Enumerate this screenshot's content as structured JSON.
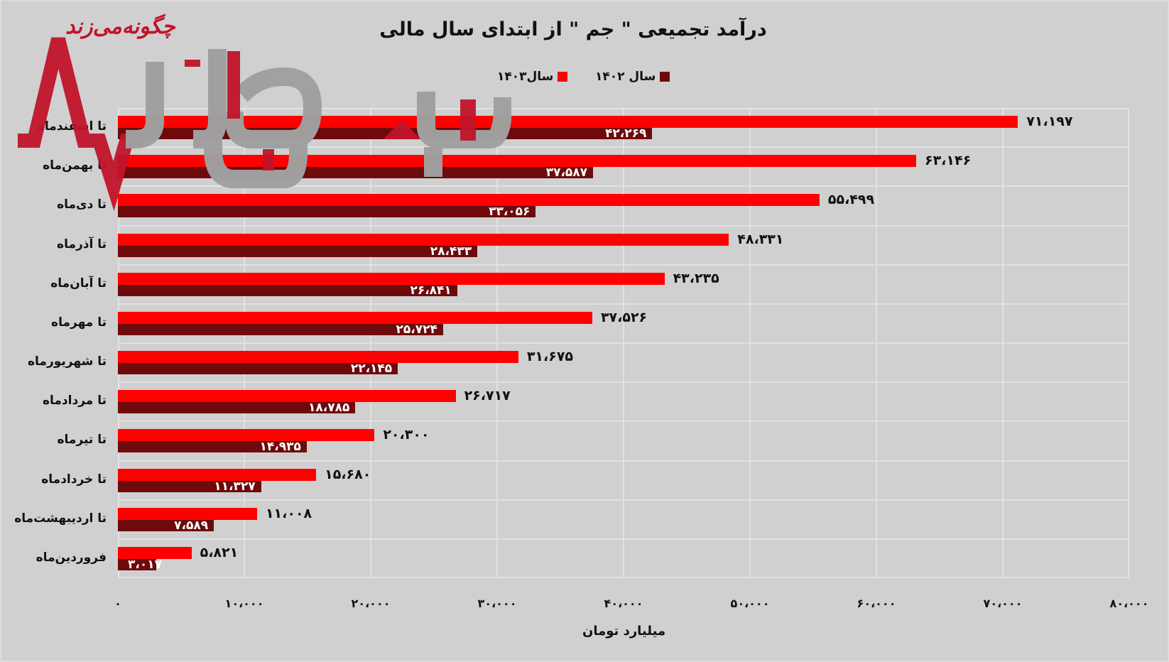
{
  "chart_data": {
    "type": "bar",
    "orientation": "horizontal",
    "title": "درآمد تجمیعی \" جم \"  از ابتدای سال مالی",
    "xlabel": "میلیارد تومان",
    "ylabel": "",
    "xlim": [
      0,
      80000
    ],
    "x_ticks": [
      0,
      10000,
      20000,
      30000,
      40000,
      50000,
      60000,
      70000,
      80000
    ],
    "x_tick_labels": [
      "۰",
      "۱۰،۰۰۰",
      "۲۰،۰۰۰",
      "۳۰،۰۰۰",
      "۴۰،۰۰۰",
      "۵۰،۰۰۰",
      "۶۰،۰۰۰",
      "۷۰،۰۰۰",
      "۸۰،۰۰۰"
    ],
    "grid": true,
    "legend_position": "top",
    "categories": [
      "تا اسفندماه",
      "تا بهمن‌ماه",
      "تا دی‌ماه",
      "تا آذرماه",
      "تا آبان‌ماه",
      "تا مهرماه",
      "تا شهریورماه",
      "تا مردادماه",
      "تا تیرماه",
      "تا خردادماه",
      "تا اردیبهشت‌ماه",
      "فروردین‌ماه"
    ],
    "series": [
      {
        "name": "سال۱۴۰۳",
        "color": "#ff0000",
        "values": [
          71197,
          63146,
          55499,
          48331,
          43235,
          37526,
          31675,
          26717,
          20300,
          15680,
          11008,
          5821
        ],
        "labels": [
          "۷۱،۱۹۷",
          "۶۳،۱۴۶",
          "۵۵،۴۹۹",
          "۴۸،۳۳۱",
          "۴۳،۲۳۵",
          "۳۷،۵۲۶",
          "۳۱،۶۷۵",
          "۲۶،۷۱۷",
          "۲۰،۳۰۰",
          "۱۵،۶۸۰",
          "۱۱،۰۰۸",
          "۵،۸۲۱"
        ]
      },
      {
        "name": "سال ۱۴۰۲",
        "color": "#6e0a0b",
        "values": [
          42269,
          37587,
          33056,
          28433,
          26841,
          25724,
          22145,
          18785,
          14935,
          11327,
          7589,
          3017
        ],
        "labels": [
          "۴۲،۲۶۹",
          "۳۷،۵۸۷",
          "۳۳،۰۵۶",
          "۲۸،۴۳۳",
          "۲۶،۸۴۱",
          "۲۵،۷۲۴",
          "۲۲،۱۴۵",
          "۱۸،۷۸۵",
          "۱۴،۹۳۵",
          "۱۱،۳۲۷",
          "۷،۵۸۹",
          "۳،۰۱۷"
        ]
      }
    ]
  },
  "title": "درآمد تجمیعی \" جم \"  از ابتدای سال مالی",
  "legend": {
    "items": [
      {
        "label": "سال۱۴۰۳",
        "color": "#ff0000"
      },
      {
        "label": "سال ۱۴۰۲",
        "color": "#6e0a0b"
      }
    ]
  },
  "axis": {
    "x_title": "میلیارد تومان"
  },
  "watermark": {
    "text": "چگونه‌می‌زند",
    "icon": "heartbeat-logo-icon",
    "logo": "brand-watermark-logo",
    "colors": {
      "red": "#c0142a",
      "grey": "#a0a0a0"
    }
  }
}
